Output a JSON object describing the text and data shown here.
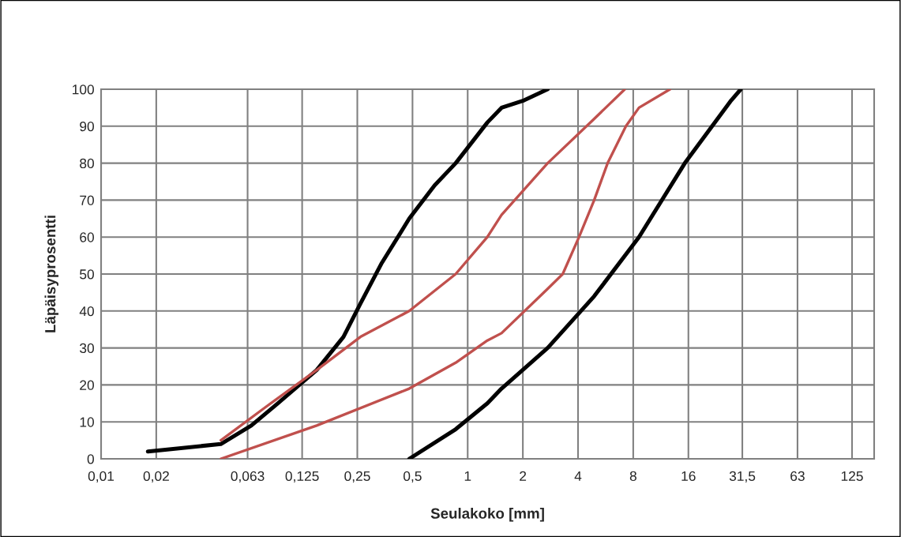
{
  "chart_data": {
    "type": "line",
    "xlabel": "Seulakoko [mm]",
    "ylabel": "Läpäisyprosentti",
    "log": "x",
    "grid": true,
    "marker": "none",
    "line_style": "solid",
    "xlim": [
      0.01,
      165
    ],
    "ylim": [
      0,
      100
    ],
    "xticks": [
      {
        "value": 0.01,
        "label": "0,01"
      },
      {
        "value": 0.02,
        "label": "0,02"
      },
      {
        "value": 0.063,
        "label": "0,063"
      },
      {
        "value": 0.125,
        "label": "0,125"
      },
      {
        "value": 0.25,
        "label": "0,25"
      },
      {
        "value": 0.5,
        "label": "0,5"
      },
      1,
      2,
      4,
      8,
      16,
      {
        "value": 31.5,
        "label": "31,5"
      },
      63,
      125
    ],
    "yticks": [
      0,
      10,
      20,
      30,
      40,
      50,
      60,
      70,
      80,
      90,
      100
    ],
    "series": [
      {
        "color": "#000000",
        "x": [
          0.018,
          0.045,
          0.066,
          0.092,
          0.15,
          0.21,
          0.26,
          0.34,
          0.48,
          0.66,
          0.86,
          1.28,
          1.53,
          2.03,
          2.73
        ],
        "values": [
          2,
          4,
          9,
          15,
          24,
          33,
          42,
          53,
          65,
          74,
          80,
          91,
          95,
          97,
          100
        ]
      },
      {
        "color": "#c0504d",
        "x": [
          0.045,
          0.079,
          0.15,
          0.26,
          0.48,
          0.86,
          1.28,
          1.53,
          2.73,
          4.9,
          7.2
        ],
        "values": [
          5,
          14,
          24,
          33,
          40,
          50,
          60,
          66,
          80,
          92,
          100
        ]
      },
      {
        "color": "#c0504d",
        "x": [
          0.045,
          0.15,
          0.48,
          0.86,
          1.28,
          1.53,
          2.73,
          3.3,
          4.05,
          4.9,
          5.8,
          7.3,
          8.6,
          12.7
        ],
        "values": [
          0,
          9,
          19,
          26,
          32,
          34,
          46,
          50,
          60,
          70,
          80,
          90,
          95,
          100
        ]
      },
      {
        "color": "#000000",
        "x": [
          0.48,
          0.86,
          1.28,
          1.53,
          2.73,
          4.9,
          8.6,
          15.3,
          27.4,
          30.9
        ],
        "values": [
          0,
          8,
          15,
          19,
          30,
          44,
          60,
          80,
          97,
          100
        ]
      }
    ]
  }
}
